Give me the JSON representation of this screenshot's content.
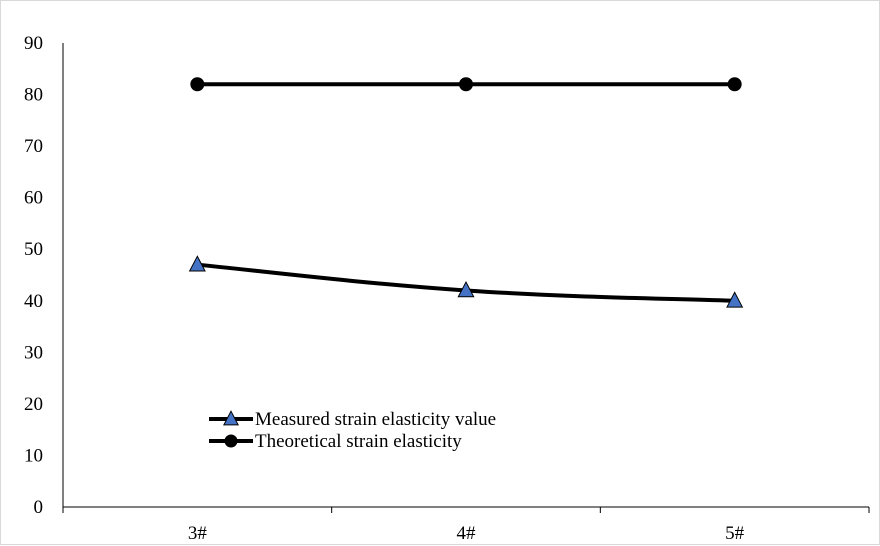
{
  "chart_data": {
    "type": "line",
    "title": "",
    "xlabel": "",
    "ylabel": "",
    "categories": [
      "3#",
      "4#",
      "5#"
    ],
    "ylim": [
      0,
      90
    ],
    "y_ticks": [
      0,
      10,
      20,
      30,
      40,
      50,
      60,
      70,
      80,
      90
    ],
    "grid": false,
    "legend_position": "bottom-left",
    "series": [
      {
        "name": "Measured strain elasticity value",
        "values": [
          47,
          42,
          40
        ],
        "marker": "triangle",
        "marker_color": "#4472c4",
        "line_color": "#000000",
        "smooth": true
      },
      {
        "name": "Theoretical strain elasticity",
        "values": [
          82,
          82,
          82
        ],
        "marker": "circle",
        "marker_color": "#000000",
        "line_color": "#000000",
        "smooth": false
      }
    ]
  }
}
